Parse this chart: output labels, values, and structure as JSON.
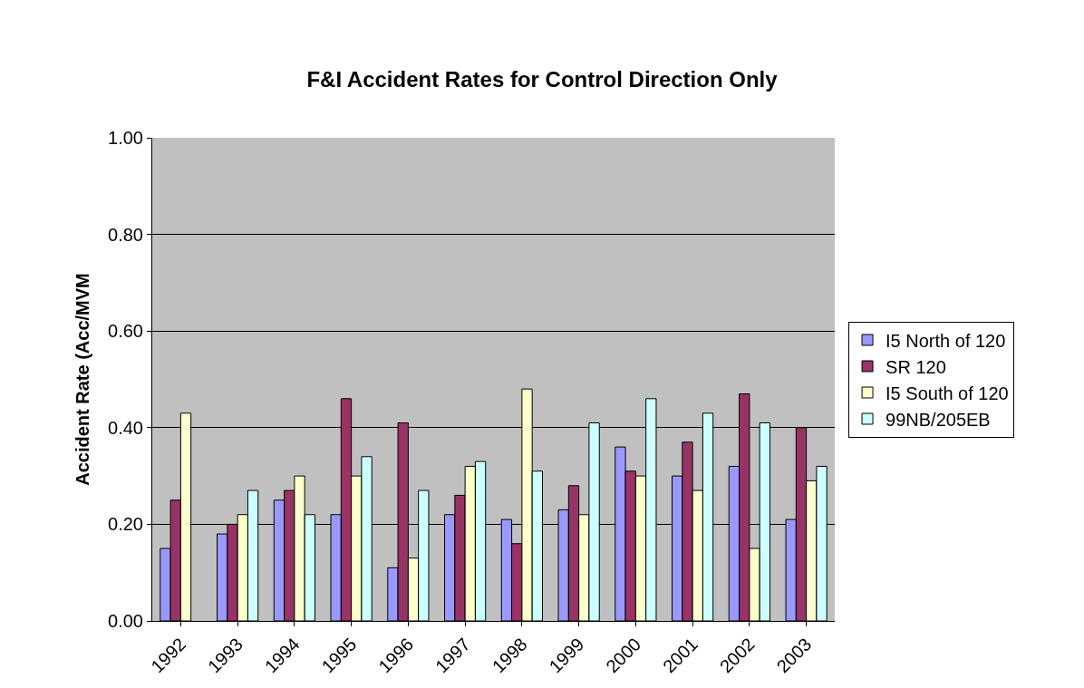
{
  "chart_data": {
    "type": "bar",
    "title": "F&I Accident Rates for Control Direction Only",
    "ylabel": "Accident Rate (Acc/MVM",
    "categories": [
      "1992",
      "1993",
      "1994",
      "1995",
      "1996",
      "1997",
      "1998",
      "1999",
      "2000",
      "2001",
      "2002",
      "2003"
    ],
    "series": [
      {
        "name": "I5 North of 120",
        "color": "#9999ff",
        "values": [
          0.15,
          0.18,
          0.25,
          0.22,
          0.11,
          0.22,
          0.21,
          0.23,
          0.36,
          0.3,
          0.32,
          0.21
        ]
      },
      {
        "name": "SR 120",
        "color": "#993366",
        "values": [
          0.25,
          0.2,
          0.27,
          0.46,
          0.41,
          0.26,
          0.16,
          0.28,
          0.31,
          0.37,
          0.47,
          0.4
        ]
      },
      {
        "name": "I5 South of 120",
        "color": "#ffffcc",
        "values": [
          0.43,
          0.22,
          0.3,
          0.3,
          0.13,
          0.32,
          0.48,
          0.22,
          0.3,
          0.27,
          0.15,
          0.29
        ]
      },
      {
        "name": "99NB/205EB",
        "color": "#ccffff",
        "values": [
          null,
          0.27,
          0.22,
          0.34,
          0.27,
          0.33,
          0.31,
          0.41,
          0.46,
          0.43,
          0.41,
          0.32
        ]
      }
    ],
    "ylim": [
      0,
      1
    ],
    "yticks": [
      {
        "value": 0,
        "label": "0.00"
      },
      {
        "value": 0.2,
        "label": "0.20"
      },
      {
        "value": 0.4,
        "label": "0.40"
      },
      {
        "value": 0.6,
        "label": "0.60"
      },
      {
        "value": 0.8,
        "label": "0.80"
      },
      {
        "value": 1,
        "label": "1.00"
      }
    ],
    "grid": "y",
    "legend": "right"
  }
}
